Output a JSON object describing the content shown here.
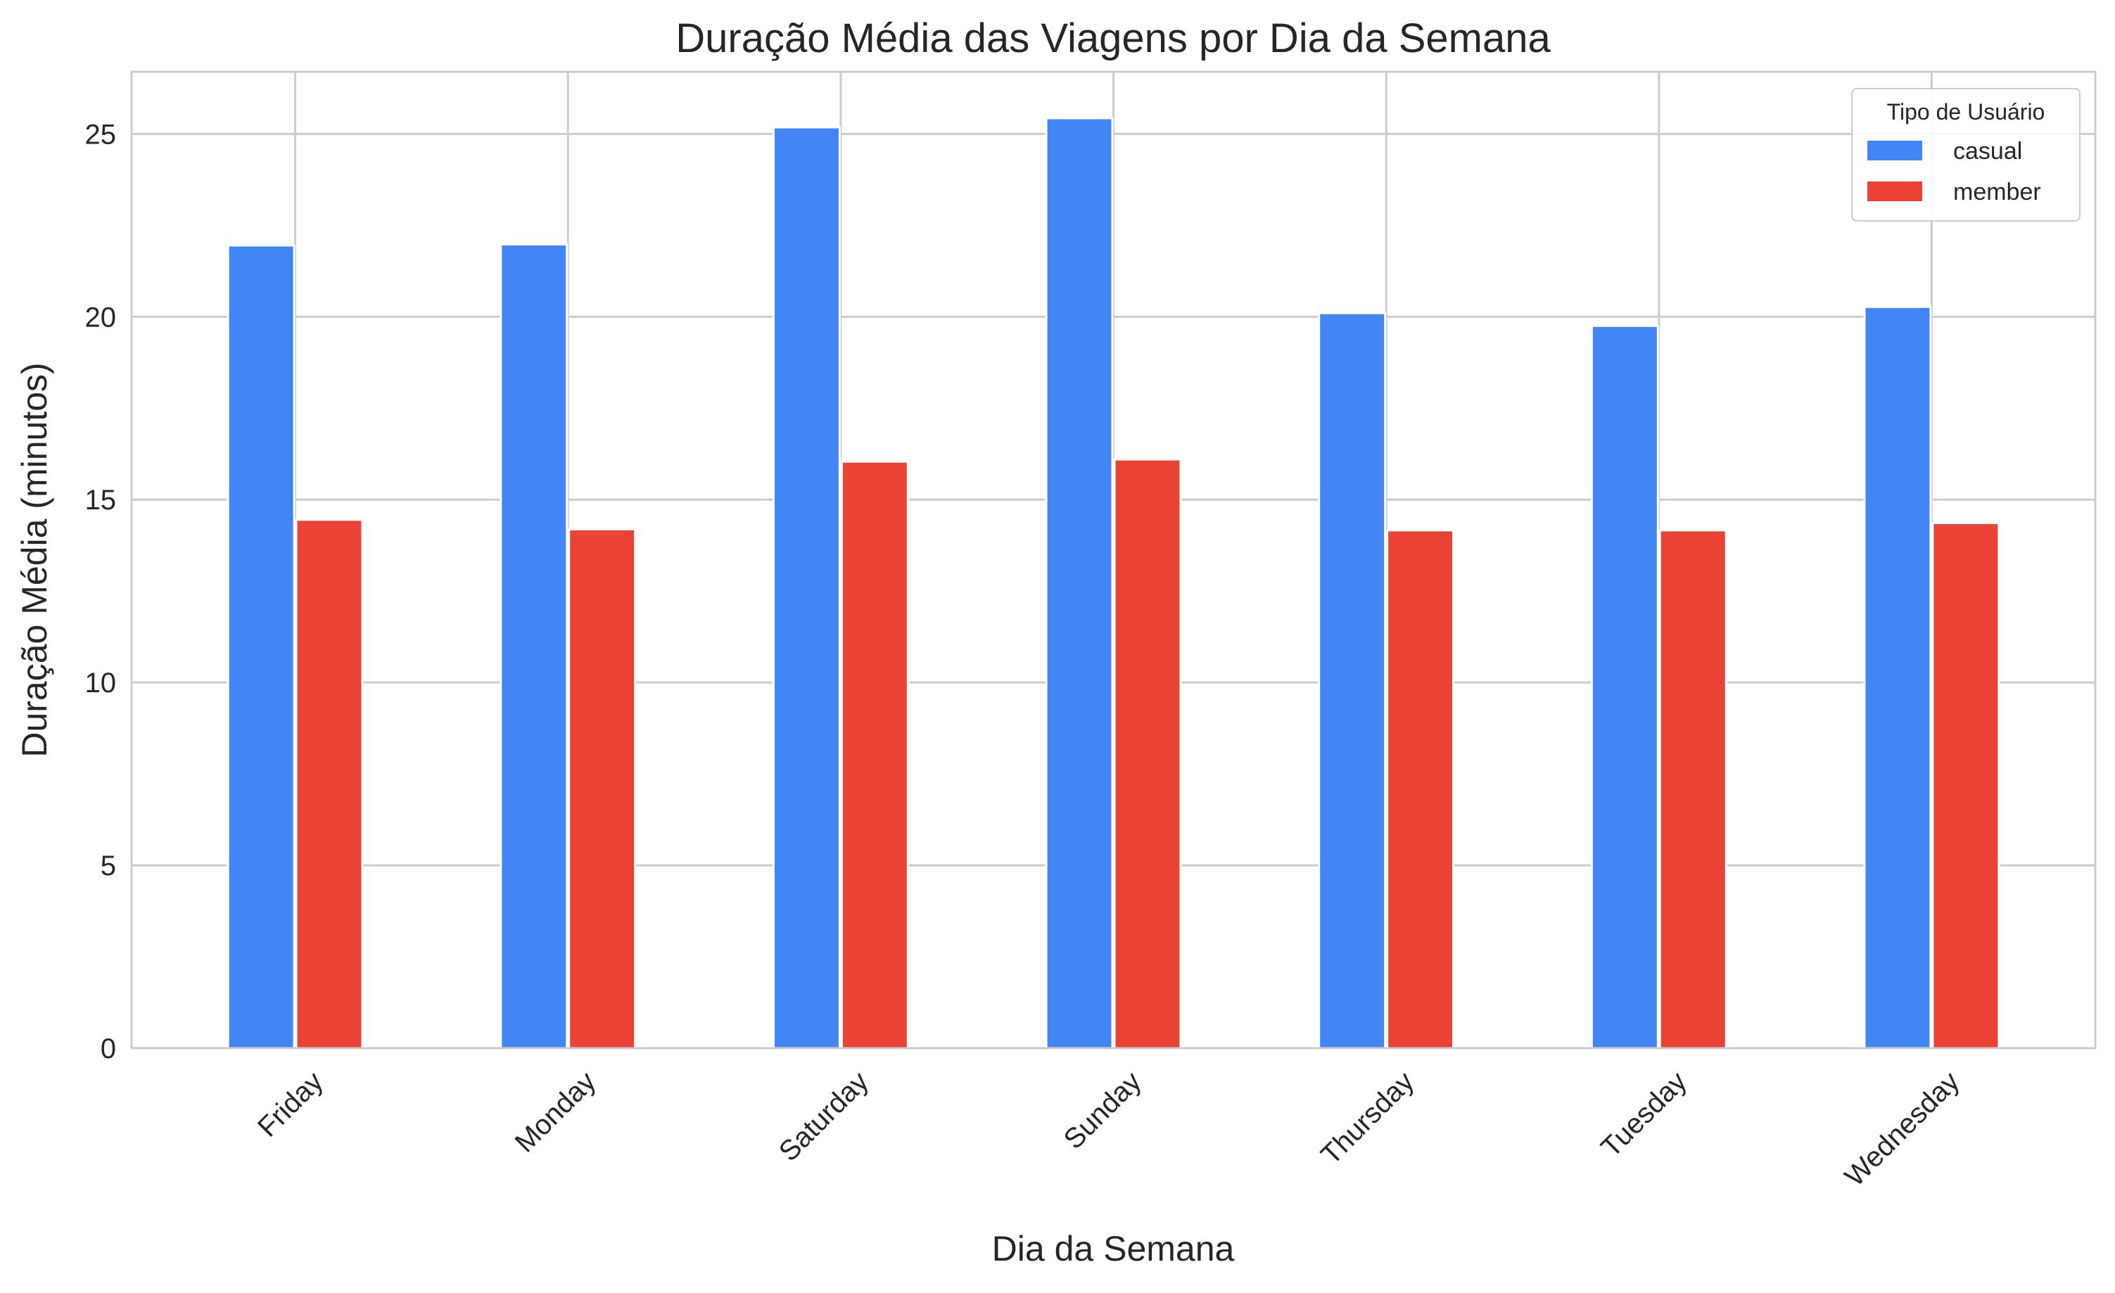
{
  "chart_data": {
    "type": "bar",
    "title": "Duração Média das Viagens por Dia da Semana",
    "xlabel": "Dia da Semana",
    "ylabel": "Duração Média (minutos)",
    "categories": [
      "Friday",
      "Monday",
      "Saturday",
      "Sunday",
      "Thursday",
      "Tuesday",
      "Wednesday"
    ],
    "series": [
      {
        "name": "casual",
        "color": "#4285F4",
        "values": [
          21.95,
          21.98,
          25.18,
          25.43,
          20.1,
          19.75,
          20.27
        ]
      },
      {
        "name": "member",
        "color": "#EA4335",
        "values": [
          14.45,
          14.19,
          16.04,
          16.1,
          14.16,
          14.16,
          14.36
        ]
      }
    ],
    "ylim": [
      0,
      26.7
    ],
    "yticks": [
      0,
      5,
      10,
      15,
      20,
      25
    ],
    "grid": true,
    "legend": {
      "title": "Tipo de Usuário",
      "placement": "top-right"
    }
  }
}
